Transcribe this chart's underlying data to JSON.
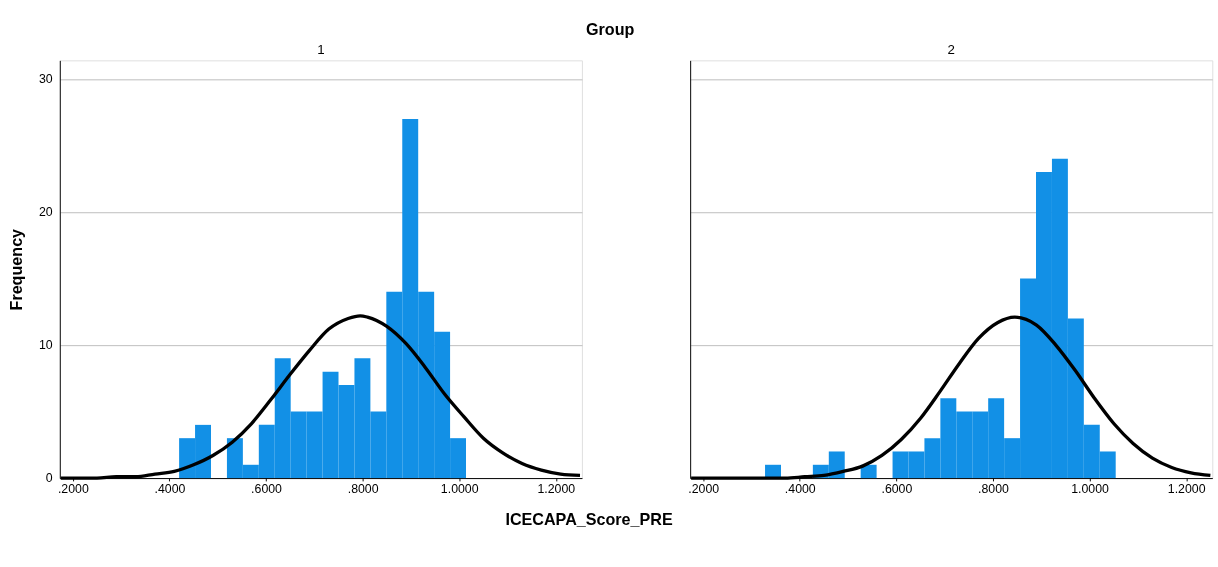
{
  "chart_data": [
    {
      "type": "histogram",
      "title": "1",
      "xlabel": "ICECAPA_Score_PRE",
      "ylabel": "Frequency",
      "annotations": [
        "Group"
      ],
      "color": "#1290e6",
      "bins": [
        0.42,
        0.453,
        0.486,
        0.519,
        0.552,
        0.585,
        0.618,
        0.651,
        0.684,
        0.717,
        0.75,
        0.783,
        0.816,
        0.849,
        0.882,
        0.915,
        0.948,
        0.981,
        1.014
      ],
      "values": [
        3,
        4,
        0,
        3,
        1,
        4,
        9,
        5,
        5,
        8,
        7,
        9,
        5,
        14,
        27,
        14,
        11,
        3
      ],
      "series": [
        {
          "type": "line",
          "color": "#000000",
          "x": [
            0.175,
            0.21,
            0.25,
            0.29,
            0.33,
            0.37,
            0.41,
            0.45,
            0.49,
            0.53,
            0.57,
            0.61,
            0.65,
            0.69,
            0.73,
            0.77,
            0.795,
            0.81,
            0.85,
            0.89,
            0.93,
            0.97,
            1.01,
            1.05,
            1.09,
            1.13,
            1.17,
            1.21,
            1.25
          ],
          "values": [
            0.0,
            0.0,
            0.0,
            0.1,
            0.1,
            0.3,
            0.5,
            1.0,
            1.7,
            2.7,
            4.1,
            5.9,
            7.8,
            9.6,
            11.2,
            12.0,
            12.2,
            12.1,
            11.4,
            10.1,
            8.3,
            6.3,
            4.6,
            3.0,
            1.9,
            1.1,
            0.6,
            0.3,
            0.2
          ]
        }
      ],
      "xlim": [
        0.173,
        1.254
      ],
      "xticks": [
        {
          "value": 0.2,
          "label": ".2000"
        },
        {
          "value": 0.4,
          "label": ".4000"
        },
        {
          "value": 0.6,
          "label": ".6000"
        },
        {
          "value": 0.8,
          "label": ".8000"
        },
        {
          "value": 1.0,
          "label": "1.0000"
        },
        {
          "value": 1.2,
          "label": "1.2000"
        }
      ],
      "ylim": [
        0,
        31.4
      ],
      "yticks": [
        0,
        10,
        20,
        30
      ],
      "grid": "y"
    },
    {
      "type": "histogram",
      "title": "2",
      "color": "#1290e6",
      "bins": [
        0.328,
        0.361,
        0.394,
        0.427,
        0.46,
        0.493,
        0.526,
        0.559,
        0.592,
        0.625,
        0.658,
        0.691,
        0.724,
        0.757,
        0.79,
        0.823,
        0.856,
        0.889,
        0.922,
        0.955,
        0.988,
        1.021,
        1.054
      ],
      "values": [
        1,
        0,
        0,
        1,
        2,
        0,
        1,
        0,
        2,
        2,
        3,
        6,
        5,
        5,
        6,
        3,
        15,
        23,
        24,
        12,
        4,
        2
      ],
      "series": [
        {
          "type": "line",
          "color": "#000000",
          "x": [
            0.175,
            0.21,
            0.25,
            0.29,
            0.33,
            0.37,
            0.41,
            0.45,
            0.49,
            0.53,
            0.57,
            0.61,
            0.65,
            0.69,
            0.73,
            0.77,
            0.81,
            0.845,
            0.89,
            0.93,
            0.97,
            1.01,
            1.05,
            1.09,
            1.13,
            1.17,
            1.21,
            1.25
          ],
          "values": [
            0.0,
            0.0,
            0.0,
            0.0,
            0.0,
            0.0,
            0.1,
            0.2,
            0.5,
            0.9,
            1.7,
            2.9,
            4.5,
            6.5,
            8.6,
            10.5,
            11.7,
            12.1,
            11.5,
            10.0,
            8.1,
            6.0,
            4.1,
            2.6,
            1.5,
            0.8,
            0.4,
            0.2
          ]
        }
      ],
      "xlim": [
        0.173,
        1.254
      ],
      "xticks": [
        {
          "value": 0.2,
          "label": ".2000"
        },
        {
          "value": 0.4,
          "label": ".4000"
        },
        {
          "value": 0.6,
          "label": ".6000"
        },
        {
          "value": 0.8,
          "label": ".8000"
        },
        {
          "value": 1.0,
          "label": "1.0000"
        },
        {
          "value": 1.2,
          "label": "1.2000"
        }
      ],
      "ylim": [
        0,
        31.4
      ],
      "yticks": [
        0,
        10,
        20,
        30
      ],
      "grid": "y",
      "tick_labels": "x"
    }
  ]
}
